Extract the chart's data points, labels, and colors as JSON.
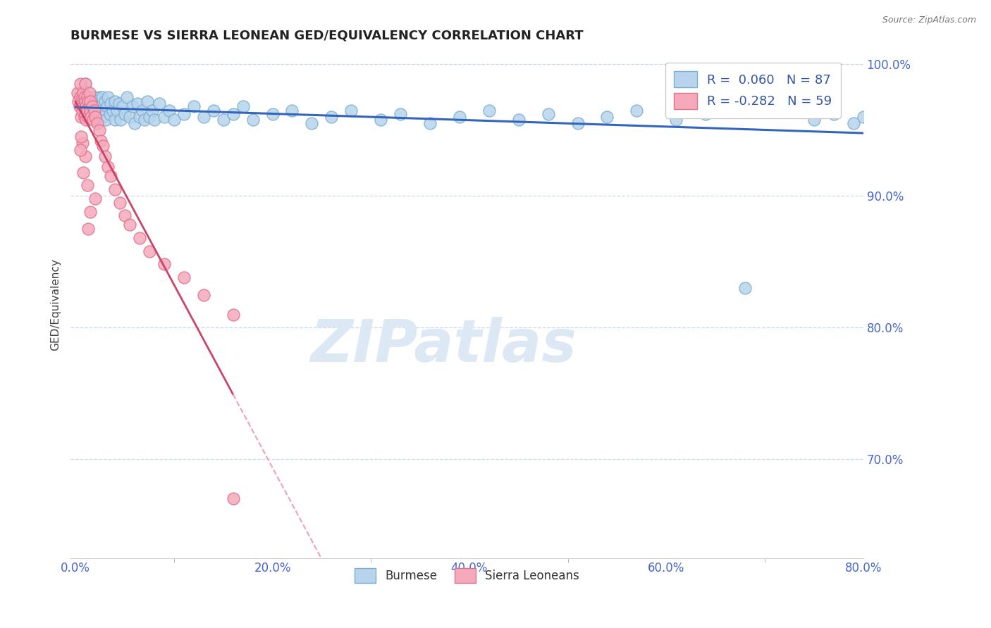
{
  "title": "BURMESE VS SIERRA LEONEAN GED/EQUIVALENCY CORRELATION CHART",
  "source": "Source: ZipAtlas.com",
  "xlabel_burmese": "Burmese",
  "xlabel_sierraleone": "Sierra Leoneans",
  "ylabel": "GED/Equivalency",
  "r_burmese": 0.06,
  "n_burmese": 87,
  "r_sierraleone": -0.282,
  "n_sierraleone": 59,
  "xlim": [
    -0.005,
    0.8
  ],
  "ylim": [
    0.625,
    1.01
  ],
  "yticks": [
    0.7,
    0.8,
    0.9,
    1.0
  ],
  "ytick_labels": [
    "70.0%",
    "80.0%",
    "90.0%",
    "100.0%"
  ],
  "xticks": [
    0.0,
    0.2,
    0.4,
    0.6,
    0.8
  ],
  "xtick_labels": [
    "0.0%",
    "20.0%",
    "40.0%",
    "60.0%",
    "80.0%"
  ],
  "color_burmese_fill": "#b8d4ec",
  "color_burmese_edge": "#7aaed0",
  "color_sierraleone_fill": "#f5aabb",
  "color_sierraleone_edge": "#e07090",
  "color_trend_burmese": "#3366bb",
  "color_trend_sierraleone": "#cc4466",
  "color_trend_sierraleone_dash": "#f0a0b8",
  "color_axis_text": "#4466cc",
  "color_legend_text": "#3355aa",
  "color_grid": "#c8d8ee",
  "watermark_text": "ZIPatlas",
  "watermark_color": "#dde8f5",
  "burmese_x": [
    0.005,
    0.008,
    0.01,
    0.012,
    0.013,
    0.014,
    0.015,
    0.016,
    0.016,
    0.017,
    0.018,
    0.018,
    0.019,
    0.02,
    0.02,
    0.021,
    0.022,
    0.023,
    0.024,
    0.025,
    0.025,
    0.026,
    0.027,
    0.028,
    0.03,
    0.03,
    0.031,
    0.032,
    0.033,
    0.035,
    0.036,
    0.038,
    0.04,
    0.04,
    0.042,
    0.044,
    0.046,
    0.048,
    0.05,
    0.052,
    0.055,
    0.058,
    0.06,
    0.063,
    0.065,
    0.068,
    0.07,
    0.073,
    0.075,
    0.078,
    0.08,
    0.085,
    0.09,
    0.095,
    0.1,
    0.11,
    0.12,
    0.13,
    0.14,
    0.15,
    0.16,
    0.17,
    0.18,
    0.2,
    0.22,
    0.24,
    0.26,
    0.28,
    0.31,
    0.33,
    0.36,
    0.39,
    0.42,
    0.45,
    0.48,
    0.51,
    0.54,
    0.57,
    0.61,
    0.64,
    0.68,
    0.72,
    0.75,
    0.77,
    0.79,
    0.8,
    0.81
  ],
  "burmese_y": [
    0.978,
    0.968,
    0.985,
    0.972,
    0.965,
    0.975,
    0.968,
    0.972,
    0.96,
    0.965,
    0.97,
    0.958,
    0.975,
    0.968,
    0.96,
    0.972,
    0.966,
    0.958,
    0.975,
    0.97,
    0.962,
    0.968,
    0.975,
    0.96,
    0.972,
    0.965,
    0.958,
    0.968,
    0.975,
    0.962,
    0.97,
    0.965,
    0.958,
    0.972,
    0.965,
    0.97,
    0.958,
    0.968,
    0.962,
    0.975,
    0.96,
    0.968,
    0.955,
    0.97,
    0.96,
    0.965,
    0.958,
    0.972,
    0.96,
    0.965,
    0.958,
    0.97,
    0.96,
    0.965,
    0.958,
    0.962,
    0.968,
    0.96,
    0.965,
    0.958,
    0.962,
    0.968,
    0.958,
    0.962,
    0.965,
    0.955,
    0.96,
    0.965,
    0.958,
    0.962,
    0.955,
    0.96,
    0.965,
    0.958,
    0.962,
    0.955,
    0.96,
    0.965,
    0.958,
    0.962,
    0.83,
    0.965,
    0.958,
    0.962,
    0.955,
    0.96,
    0.965
  ],
  "sierra_x": [
    0.002,
    0.003,
    0.004,
    0.005,
    0.005,
    0.006,
    0.006,
    0.007,
    0.007,
    0.008,
    0.008,
    0.009,
    0.009,
    0.009,
    0.01,
    0.01,
    0.01,
    0.011,
    0.011,
    0.012,
    0.012,
    0.013,
    0.013,
    0.014,
    0.014,
    0.015,
    0.015,
    0.016,
    0.017,
    0.018,
    0.019,
    0.02,
    0.022,
    0.024,
    0.026,
    0.028,
    0.03,
    0.033,
    0.036,
    0.04,
    0.045,
    0.05,
    0.055,
    0.065,
    0.075,
    0.09,
    0.11,
    0.13,
    0.16,
    0.02,
    0.012,
    0.008,
    0.015,
    0.01,
    0.013,
    0.007,
    0.006,
    0.005,
    0.16
  ],
  "sierra_y": [
    0.978,
    0.972,
    0.968,
    0.985,
    0.975,
    0.97,
    0.96,
    0.975,
    0.965,
    0.978,
    0.968,
    0.972,
    0.96,
    0.975,
    0.985,
    0.972,
    0.962,
    0.968,
    0.958,
    0.975,
    0.965,
    0.972,
    0.96,
    0.968,
    0.978,
    0.965,
    0.972,
    0.96,
    0.968,
    0.958,
    0.965,
    0.96,
    0.955,
    0.95,
    0.942,
    0.938,
    0.93,
    0.922,
    0.915,
    0.905,
    0.895,
    0.885,
    0.878,
    0.868,
    0.858,
    0.848,
    0.838,
    0.825,
    0.81,
    0.898,
    0.908,
    0.918,
    0.888,
    0.93,
    0.875,
    0.94,
    0.945,
    0.935,
    0.67
  ]
}
